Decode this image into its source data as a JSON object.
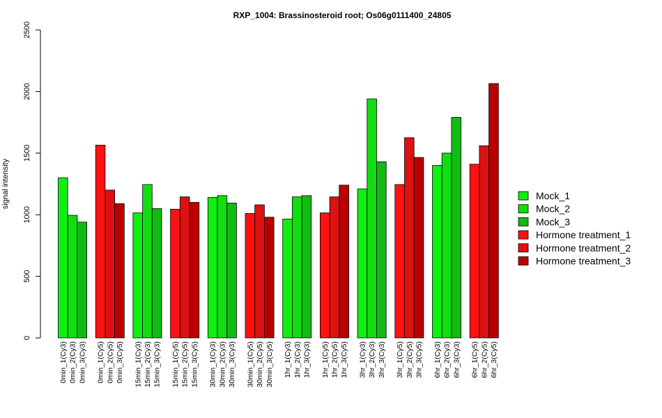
{
  "chart_data": {
    "type": "bar",
    "title": "RXP_1004: Brassinosteroid root; Os06g0111400_24805",
    "xlabel": "",
    "ylabel": "signal intensity",
    "ylim": [
      0,
      2500
    ],
    "yticks": [
      0,
      500,
      1000,
      1500,
      2000,
      2500
    ],
    "grid": false,
    "legend_position": "right",
    "series": [
      {
        "name": "Mock_1",
        "color": "#11ee11"
      },
      {
        "name": "Mock_2",
        "color": "#11dd11"
      },
      {
        "name": "Mock_3",
        "color": "#11bb11"
      },
      {
        "name": "Hormone treatment_1",
        "color": "#ff1111"
      },
      {
        "name": "Hormone treatment_2",
        "color": "#dd1111"
      },
      {
        "name": "Hormone treatment_3",
        "color": "#bb0000"
      }
    ],
    "groups": [
      {
        "series": 0,
        "labels": [
          "0min_1(Cy3)",
          "0min_2(Cy3)",
          "0min_3(Cy3)"
        ],
        "values": [
          1300,
          995,
          940
        ]
      },
      {
        "series": 3,
        "labels": [
          "0min_1(Cy5)",
          "0min_2(Cy5)",
          "0min_3(Cy5)"
        ],
        "values": [
          1565,
          1200,
          1090
        ]
      },
      {
        "series": 0,
        "labels": [
          "15min_1(Cy3)",
          "15min_2(Cy3)",
          "15min_3(Cy3)"
        ],
        "values": [
          1015,
          1245,
          1050
        ]
      },
      {
        "series": 3,
        "labels": [
          "15min_1(Cy5)",
          "15min_2(Cy5)",
          "15min_3(Cy5)"
        ],
        "values": [
          1045,
          1145,
          1100
        ]
      },
      {
        "series": 0,
        "labels": [
          "30min_1(Cy3)",
          "30min_2(Cy3)",
          "30min_3(Cy3)"
        ],
        "values": [
          1140,
          1155,
          1095
        ]
      },
      {
        "series": 3,
        "labels": [
          "30min_1(Cy5)",
          "30min_2(Cy5)",
          "30min_3(Cy5)"
        ],
        "values": [
          1010,
          1080,
          980
        ]
      },
      {
        "series": 0,
        "labels": [
          "1hr_1(Cy3)",
          "1hr_2(Cy3)",
          "1hr_3(Cy3)"
        ],
        "values": [
          965,
          1145,
          1155
        ]
      },
      {
        "series": 3,
        "labels": [
          "1hr_1(Cy5)",
          "1hr_2(Cy5)",
          "1hr_3(Cy5)"
        ],
        "values": [
          1015,
          1145,
          1240
        ]
      },
      {
        "series": 0,
        "labels": [
          "3hr_1(Cy3)",
          "3hr_2(Cy3)",
          "3hr_3(Cy3)"
        ],
        "values": [
          1210,
          1940,
          1430
        ]
      },
      {
        "series": 3,
        "labels": [
          "3hr_1(Cy5)",
          "3hr_2(Cy5)",
          "3hr_3(Cy5)"
        ],
        "values": [
          1245,
          1625,
          1465
        ]
      },
      {
        "series": 0,
        "labels": [
          "6hr_1(Cy3)",
          "6hr_2(Cy3)",
          "6hr_3(Cy3)"
        ],
        "values": [
          1400,
          1500,
          1790
        ]
      },
      {
        "series": 3,
        "labels": [
          "6hr_1(Cy5)",
          "6hr_2(Cy5)",
          "6hr_3(Cy5)"
        ],
        "values": [
          1410,
          1560,
          2065
        ]
      }
    ]
  }
}
